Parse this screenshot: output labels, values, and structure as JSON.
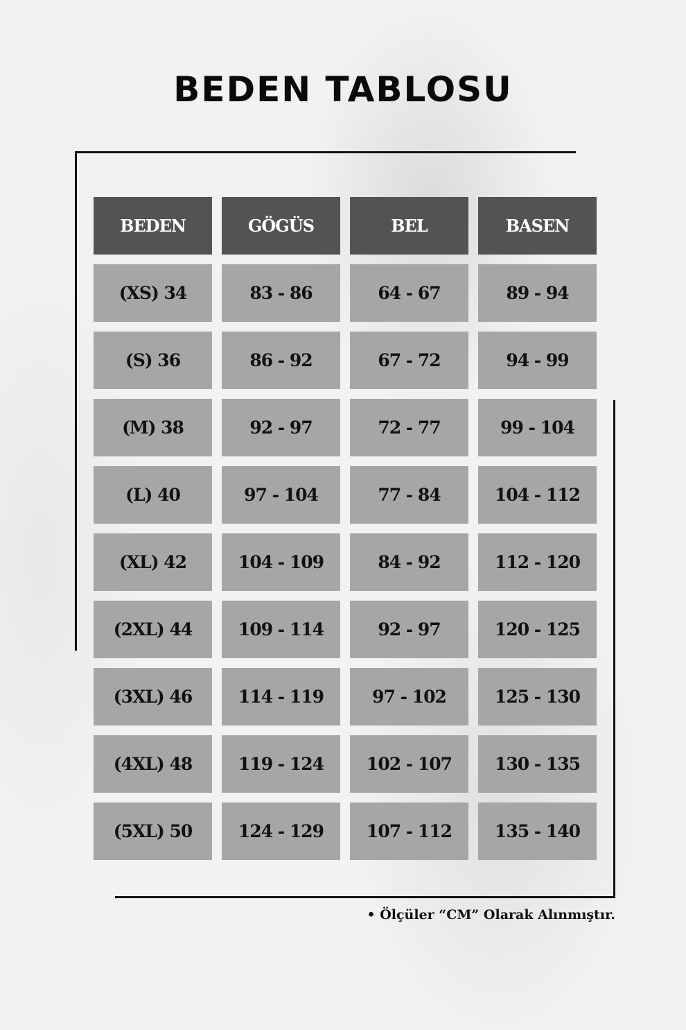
{
  "title": "BEDEN TABLOSU",
  "table": {
    "headers": [
      "BEDEN",
      "GÖGÜS",
      "BEL",
      "BASEN"
    ],
    "rows": [
      [
        "(XS) 34",
        "83 - 86",
        "64 - 67",
        "89 - 94"
      ],
      [
        "(S) 36",
        "86 - 92",
        "67 - 72",
        "94 - 99"
      ],
      [
        "(M) 38",
        "92 - 97",
        "72 - 77",
        "99 - 104"
      ],
      [
        "(L) 40",
        "97 - 104",
        "77 - 84",
        "104 - 112"
      ],
      [
        "(XL) 42",
        "104 - 109",
        "84 - 92",
        "112 - 120"
      ],
      [
        "(2XL) 44",
        "109 - 114",
        "92 - 97",
        "120 - 125"
      ],
      [
        "(3XL) 46",
        "114 - 119",
        "97 - 102",
        "125 - 130"
      ],
      [
        "(4XL) 48",
        "119 - 124",
        "102 - 107",
        "130 - 135"
      ],
      [
        "(5XL) 50",
        "124 - 129",
        "107 - 112",
        "135 - 140"
      ]
    ]
  },
  "note": "• Ölçüler “CM” Olarak Alınmıştır.",
  "colors": {
    "header_bg": "#535353",
    "cell_bg": "#a6a6a6",
    "text": "#111111"
  }
}
